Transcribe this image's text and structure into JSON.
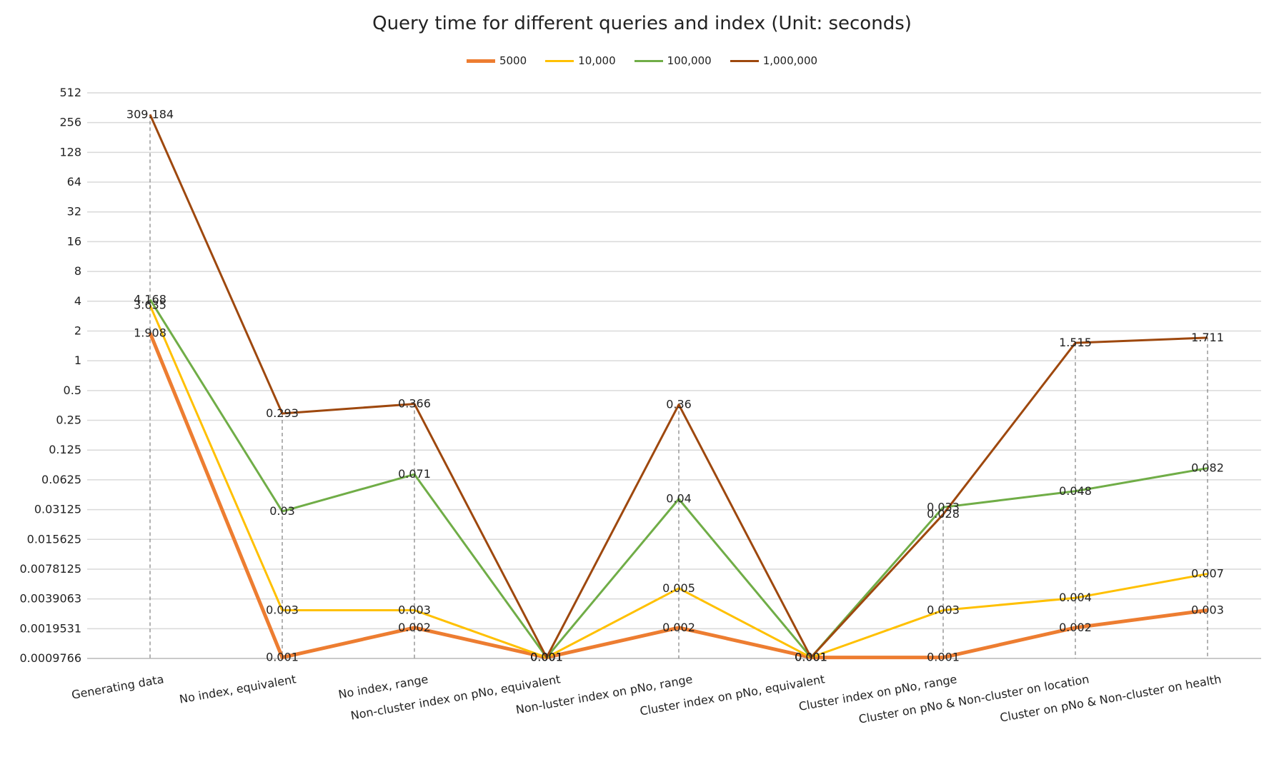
{
  "chart_data": {
    "type": "line",
    "title": "Query time for different queries and index (Unit: seconds)",
    "xlabel": "",
    "ylabel": "",
    "yscale": "log2",
    "ylim": [
      0.0009766,
      512
    ],
    "yticks": [
      "512",
      "256",
      "128",
      "64",
      "32",
      "16",
      "8",
      "4",
      "2",
      "1",
      "0.5",
      "0.25",
      "0.125",
      "0.0625",
      "0.03125",
      "0.015625",
      "0.0078125",
      "0.0039063",
      "0.0019531",
      "0.0009766"
    ],
    "categories": [
      "Generating data",
      "No index, equivalent",
      "No index, range",
      "Non-cluster index on pNo, equivalent",
      "Non-luster index on pNo, range",
      "Cluster index on pNo, equivalent",
      "Cluster index on pNo, range",
      "Cluster on pNo & Non-cluster on location",
      "Cluster on pNo & Non-cluster on health"
    ],
    "grid": true,
    "legend_position": "top",
    "series": [
      {
        "name": "5000",
        "color": "#ED7D31",
        "values": [
          1.908,
          0.001,
          0.002,
          0.001,
          0.002,
          0.001,
          0.001,
          0.002,
          0.003
        ],
        "labels": [
          "1.908",
          "0.001",
          "0.002",
          "0.001",
          "0.002",
          "0.001",
          "0.001",
          "0.002",
          "0.003"
        ]
      },
      {
        "name": "10,000",
        "color": "#FFC000",
        "values": [
          3.635,
          0.003,
          0.003,
          0.001,
          0.005,
          0.001,
          0.003,
          0.004,
          0.007
        ],
        "labels": [
          "3.635",
          "0.003",
          "0.003",
          "0.001",
          "0.005",
          "0.001",
          "0.003",
          "0.004",
          "0.007"
        ]
      },
      {
        "name": "100,000",
        "color": "#70AD47",
        "values": [
          4.168,
          0.03,
          0.071,
          0.001,
          0.04,
          0.001,
          0.033,
          0.048,
          0.082
        ],
        "labels": [
          "4.168",
          "0.03",
          "0.071",
          "0.001",
          "0.04",
          "0.001",
          "0.033",
          "0.048",
          "0.082"
        ]
      },
      {
        "name": "1,000,000",
        "color": "#9E480E",
        "values": [
          309.184,
          0.293,
          0.366,
          0.001,
          0.36,
          0.001,
          0.028,
          1.515,
          1.711
        ],
        "labels": [
          "309.184",
          "0.293",
          "0.366",
          "0.001",
          "0.36",
          "0.001",
          "0.028",
          "1.515",
          "1.711"
        ]
      }
    ]
  }
}
